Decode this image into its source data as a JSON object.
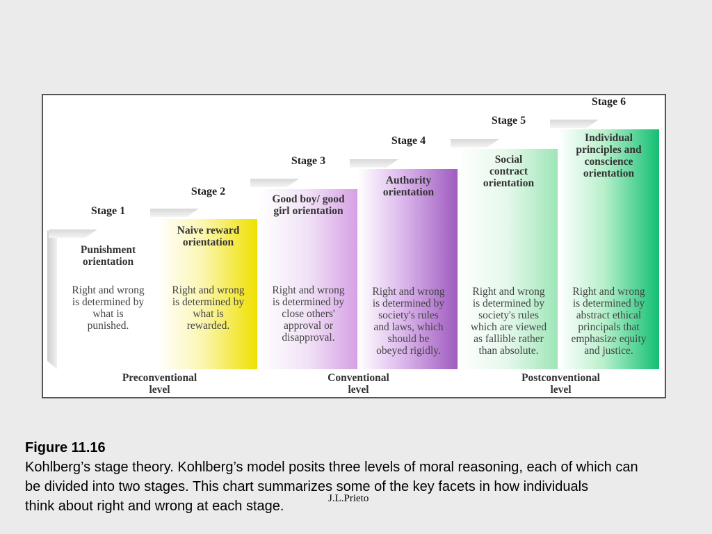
{
  "diagram": {
    "stages": [
      {
        "label": "Stage 1",
        "orientation": "Punishment\norientation",
        "description": "Right and wrong\nis determined by\nwhat is\npunished.",
        "color": "#ffffff"
      },
      {
        "label": "Stage 2",
        "orientation": "Naive reward\norientation",
        "description": "Right and wrong\nis determined by\nwhat is\nrewarded.",
        "color": "#f2e520"
      },
      {
        "label": "Stage 3",
        "orientation": "Good boy/ good\ngirl orientation",
        "description": "Right and wrong\nis determined by\nclose others'\napproval or\ndisapproval.",
        "color": "#d9a6e6"
      },
      {
        "label": "Stage 4",
        "orientation": "Authority\norientation",
        "description": "Right and wrong\nis determined by\nsociety's rules\nand laws, which\nshould be\nobeyed rigidly.",
        "color": "#a667c2"
      },
      {
        "label": "Stage 5",
        "orientation": "Social\ncontract\norientation",
        "description": "Right and wrong\nis determined by\nsociety's  rules\nwhich are viewed\nas fallible rather\nthan absolute.",
        "color": "#a8e8c0"
      },
      {
        "label": "Stage 6",
        "orientation": "Individual\nprinciples and\nconscience\norientation",
        "description": "Right and wrong\nis determined by\nabstract ethical\nprincipals that\nemphasize equity\nand justice.",
        "color": "#22c47a"
      }
    ],
    "levels": [
      "Preconventional\nlevel",
      "Conventional\nlevel",
      "Postconventional\nlevel"
    ]
  },
  "caption": {
    "figure_number": "Figure 11.16",
    "line1": "Kohlberg’s stage theory. Kohlberg’s model posits three levels of moral reasoning, each of which can",
    "line2": "be divided into two stages. This chart summarizes some of the key facets in how individuals",
    "line3": "think about right and wrong at each stage."
  },
  "credit": "J.L.Prieto"
}
